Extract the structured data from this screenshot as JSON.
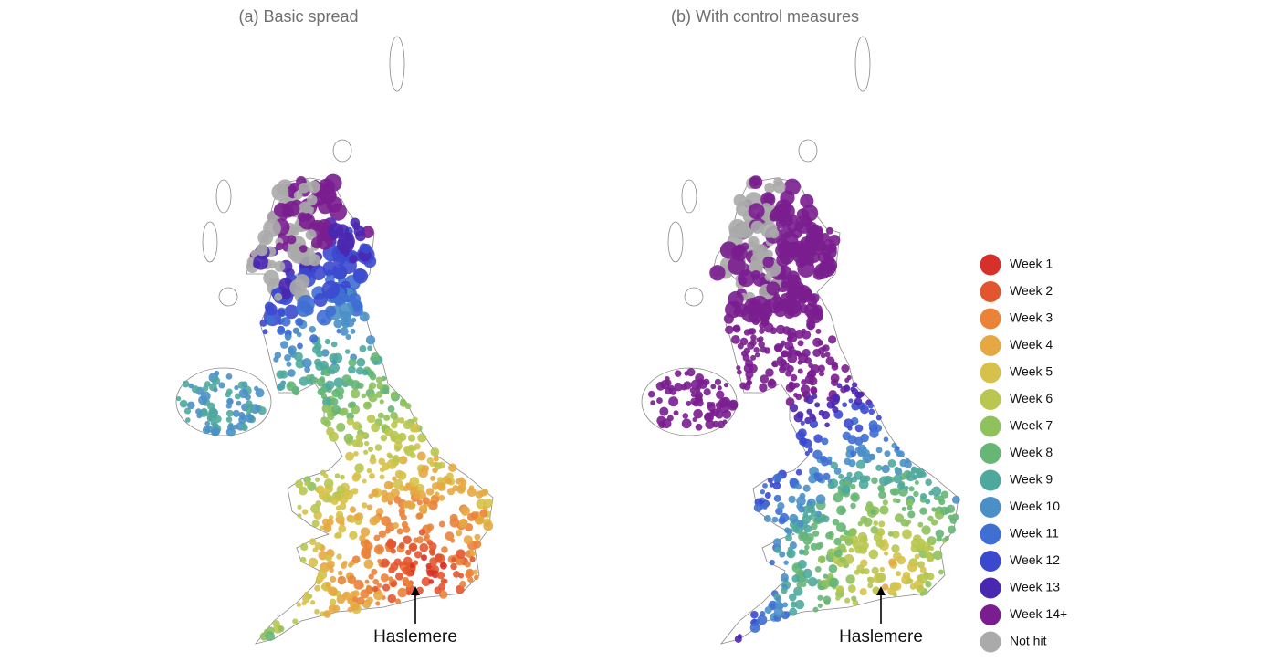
{
  "panels": [
    {
      "title": "(a) Basic spread",
      "annotation": "Haslemere"
    },
    {
      "title": "(b) With control measures",
      "annotation": "Haslemere"
    }
  ],
  "legend": {
    "items": [
      {
        "label": "Week 1",
        "color": "#d7302a"
      },
      {
        "label": "Week 2",
        "color": "#e2562f"
      },
      {
        "label": "Week 3",
        "color": "#ea8338"
      },
      {
        "label": "Week 4",
        "color": "#e6a842"
      },
      {
        "label": "Week 5",
        "color": "#d6c24a"
      },
      {
        "label": "Week 6",
        "color": "#b9c750"
      },
      {
        "label": "Week 7",
        "color": "#8fc15d"
      },
      {
        "label": "Week 8",
        "color": "#67b676"
      },
      {
        "label": "Week 9",
        "color": "#4fa89c"
      },
      {
        "label": "Week 10",
        "color": "#4a90c6"
      },
      {
        "label": "Week 11",
        "color": "#3f6fd3"
      },
      {
        "label": "Week 12",
        "color": "#3b49cf"
      },
      {
        "label": "Week 13",
        "color": "#4a27b0"
      },
      {
        "label": "Week 14+",
        "color": "#7a1e8f"
      },
      {
        "label": "Not hit",
        "color": "#aaaaaa"
      }
    ]
  }
}
